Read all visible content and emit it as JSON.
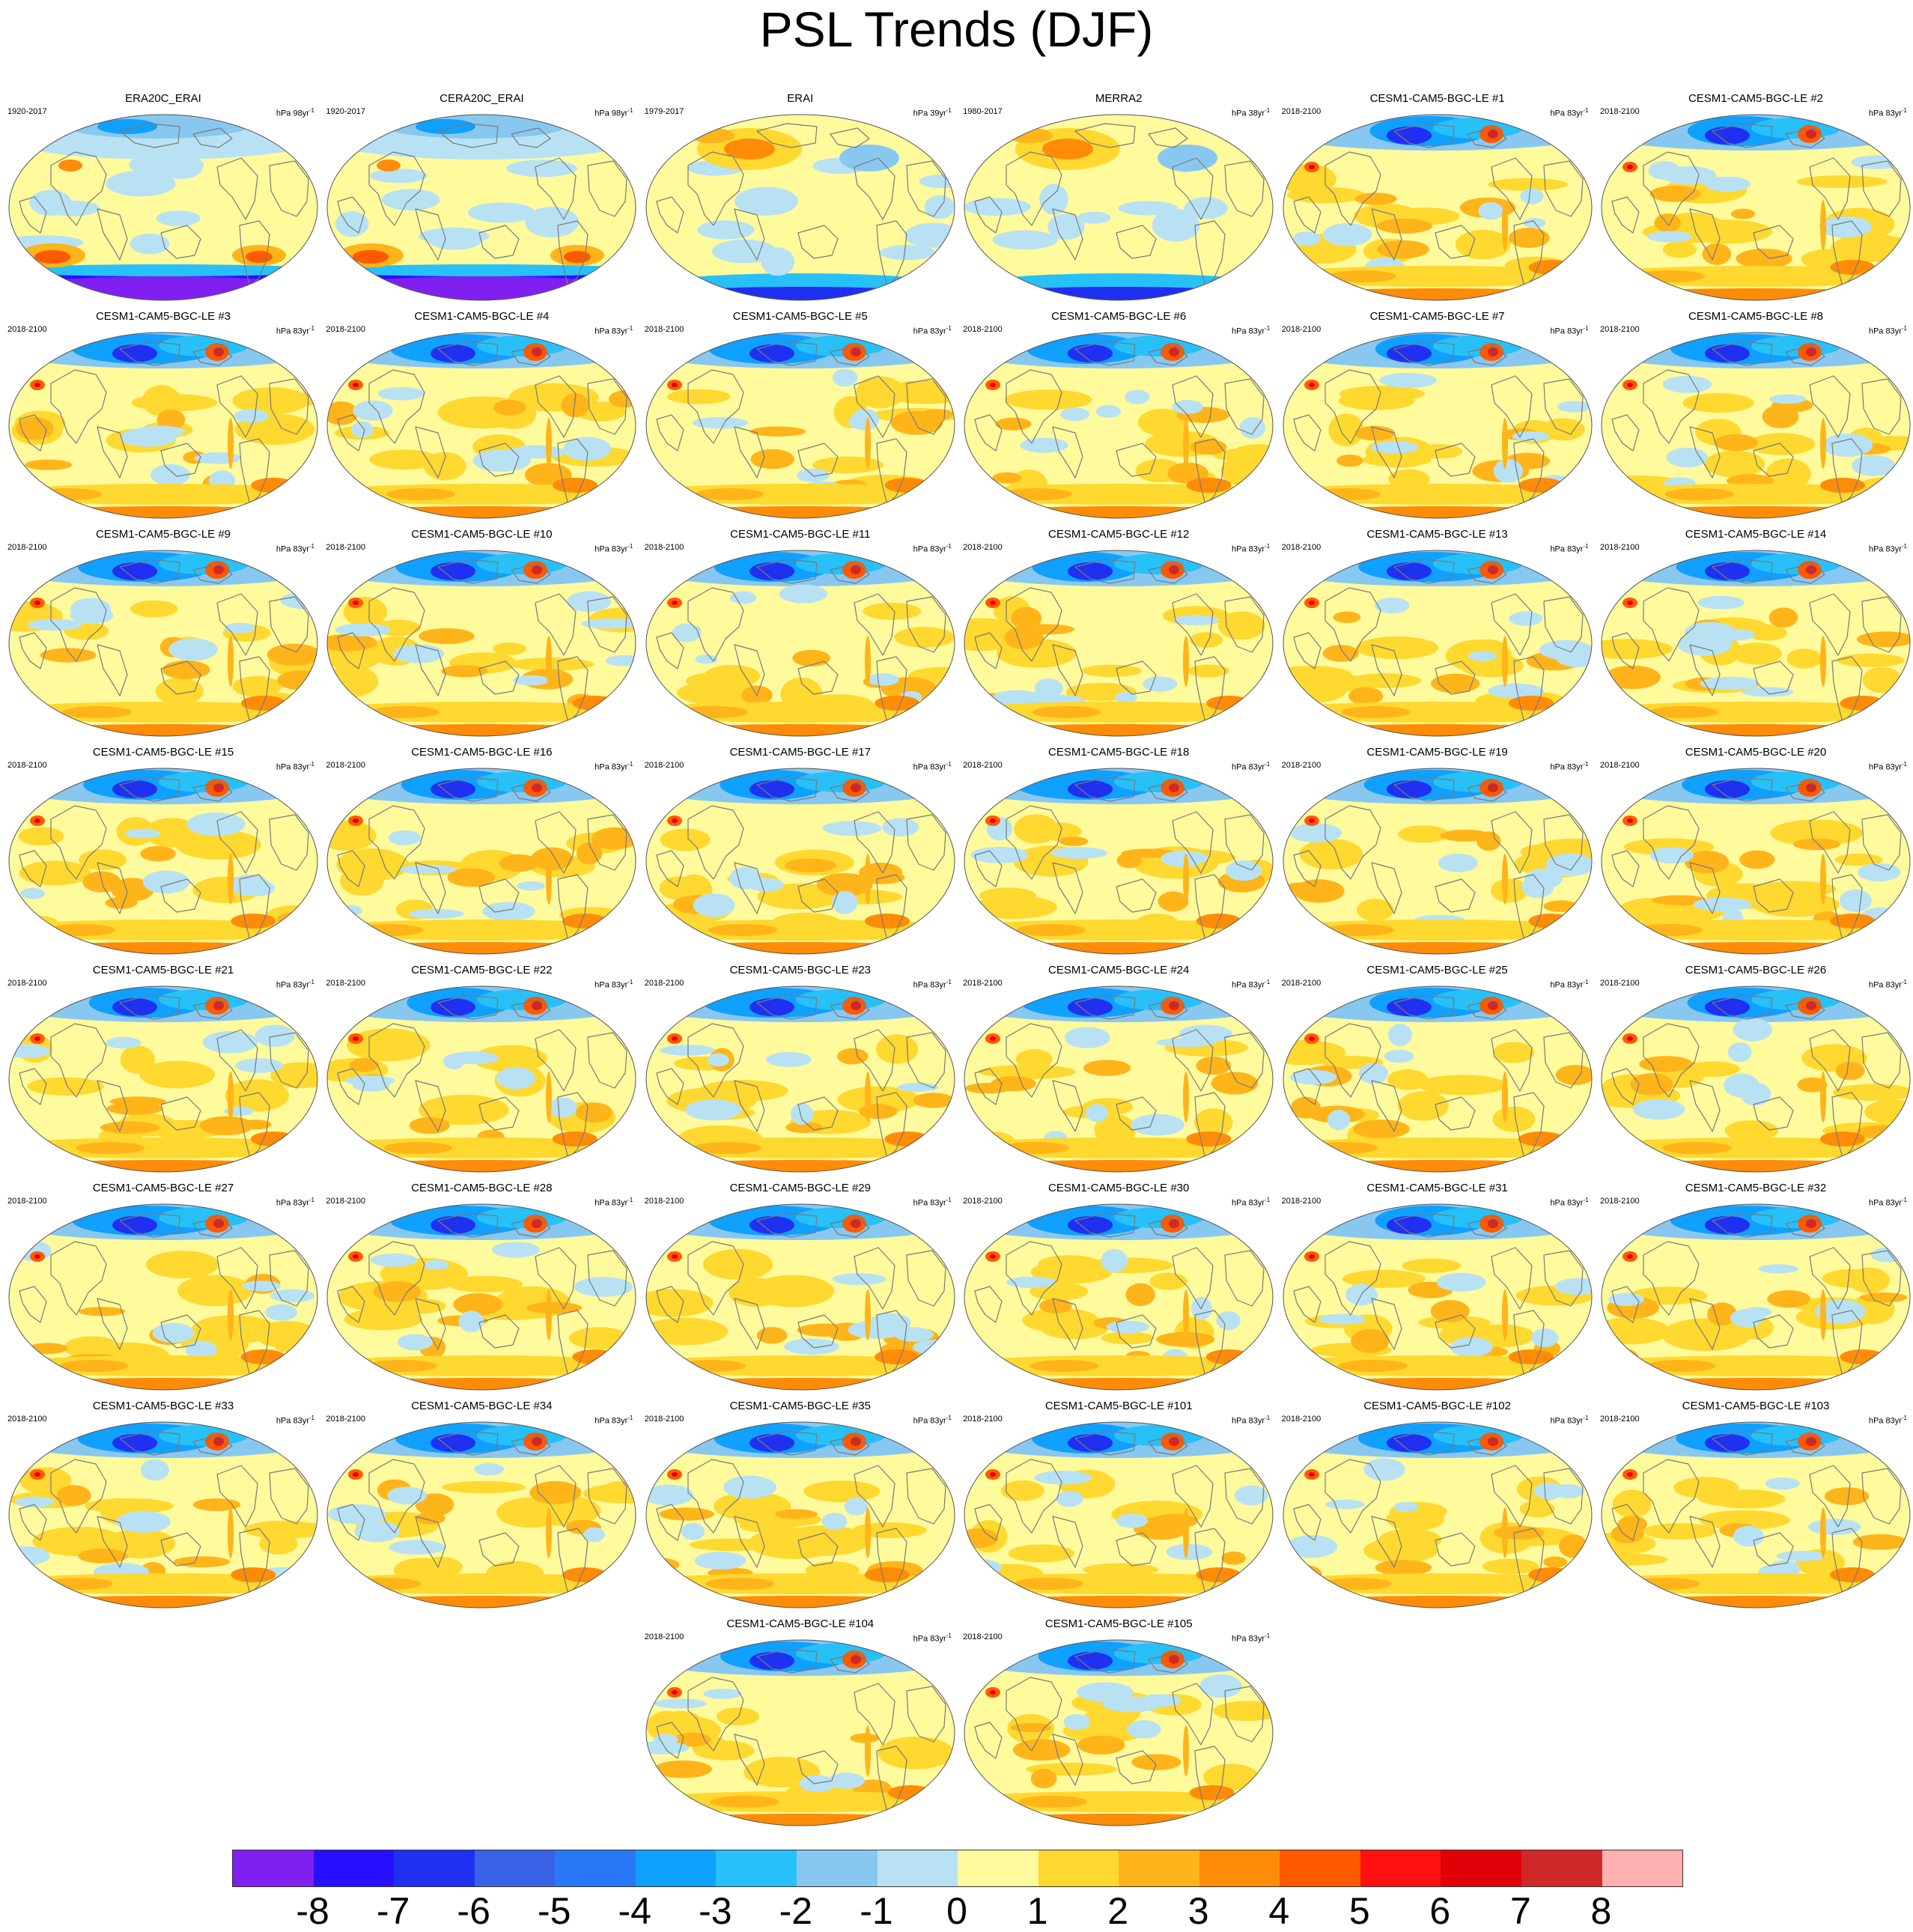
{
  "title": "PSL Trends (DJF)",
  "colorbar": {
    "colors": [
      "#8020f0",
      "#2810ff",
      "#2030f0",
      "#3a62e6",
      "#2878f8",
      "#10a0ff",
      "#28c0f8",
      "#88c8f0",
      "#b8e2f4",
      "#fffa9c",
      "#ffd830",
      "#ffb41a",
      "#ff8c08",
      "#ff5a00",
      "#ff1010",
      "#e00008",
      "#d02828",
      "#ffb0b0"
    ],
    "labels": [
      "-8",
      "-7",
      "-6",
      "-5",
      "-4",
      "-3",
      "-2",
      "-1",
      "0",
      "1",
      "2",
      "3",
      "4",
      "5",
      "6",
      "7",
      "8"
    ]
  },
  "panels": [
    {
      "name": "ERA20C_ERAI",
      "years": "1920-2017",
      "units": "hPa 98yr",
      "style": "reanalysis"
    },
    {
      "name": "CERA20C_ERAI",
      "years": "1920-2017",
      "units": "hPa 98yr",
      "style": "reanalysis"
    },
    {
      "name": "ERAI",
      "years": "1979-2017",
      "units": "hPa 39yr",
      "style": "erai"
    },
    {
      "name": "MERRA2",
      "years": "1980-2017",
      "units": "hPa 38yr",
      "style": "erai"
    },
    {
      "name": "CESM1-CAM5-BGC-LE #1",
      "years": "2018-2100",
      "units": "hPa 83yr",
      "style": "model"
    },
    {
      "name": "CESM1-CAM5-BGC-LE #2",
      "years": "2018-2100",
      "units": "hPa 83yr",
      "style": "model"
    },
    {
      "name": "CESM1-CAM5-BGC-LE #3",
      "years": "2018-2100",
      "units": "hPa 83yr",
      "style": "model"
    },
    {
      "name": "CESM1-CAM5-BGC-LE #4",
      "years": "2018-2100",
      "units": "hPa 83yr",
      "style": "model"
    },
    {
      "name": "CESM1-CAM5-BGC-LE #5",
      "years": "2018-2100",
      "units": "hPa 83yr",
      "style": "model"
    },
    {
      "name": "CESM1-CAM5-BGC-LE #6",
      "years": "2018-2100",
      "units": "hPa 83yr",
      "style": "model"
    },
    {
      "name": "CESM1-CAM5-BGC-LE #7",
      "years": "2018-2100",
      "units": "hPa 83yr",
      "style": "model"
    },
    {
      "name": "CESM1-CAM5-BGC-LE #8",
      "years": "2018-2100",
      "units": "hPa 83yr",
      "style": "model"
    },
    {
      "name": "CESM1-CAM5-BGC-LE #9",
      "years": "2018-2100",
      "units": "hPa 83yr",
      "style": "model"
    },
    {
      "name": "CESM1-CAM5-BGC-LE #10",
      "years": "2018-2100",
      "units": "hPa 83yr",
      "style": "model"
    },
    {
      "name": "CESM1-CAM5-BGC-LE #11",
      "years": "2018-2100",
      "units": "hPa 83yr",
      "style": "model"
    },
    {
      "name": "CESM1-CAM5-BGC-LE #12",
      "years": "2018-2100",
      "units": "hPa 83yr",
      "style": "model"
    },
    {
      "name": "CESM1-CAM5-BGC-LE #13",
      "years": "2018-2100",
      "units": "hPa 83yr",
      "style": "model"
    },
    {
      "name": "CESM1-CAM5-BGC-LE #14",
      "years": "2018-2100",
      "units": "hPa 83yr",
      "style": "model"
    },
    {
      "name": "CESM1-CAM5-BGC-LE #15",
      "years": "2018-2100",
      "units": "hPa 83yr",
      "style": "model"
    },
    {
      "name": "CESM1-CAM5-BGC-LE #16",
      "years": "2018-2100",
      "units": "hPa 83yr",
      "style": "model"
    },
    {
      "name": "CESM1-CAM5-BGC-LE #17",
      "years": "2018-2100",
      "units": "hPa 83yr",
      "style": "model"
    },
    {
      "name": "CESM1-CAM5-BGC-LE #18",
      "years": "2018-2100",
      "units": "hPa 83yr",
      "style": "model"
    },
    {
      "name": "CESM1-CAM5-BGC-LE #19",
      "years": "2018-2100",
      "units": "hPa 83yr",
      "style": "model"
    },
    {
      "name": "CESM1-CAM5-BGC-LE #20",
      "years": "2018-2100",
      "units": "hPa 83yr",
      "style": "model"
    },
    {
      "name": "CESM1-CAM5-BGC-LE #21",
      "years": "2018-2100",
      "units": "hPa 83yr",
      "style": "model"
    },
    {
      "name": "CESM1-CAM5-BGC-LE #22",
      "years": "2018-2100",
      "units": "hPa 83yr",
      "style": "model"
    },
    {
      "name": "CESM1-CAM5-BGC-LE #23",
      "years": "2018-2100",
      "units": "hPa 83yr",
      "style": "model"
    },
    {
      "name": "CESM1-CAM5-BGC-LE #24",
      "years": "2018-2100",
      "units": "hPa 83yr",
      "style": "model"
    },
    {
      "name": "CESM1-CAM5-BGC-LE #25",
      "years": "2018-2100",
      "units": "hPa 83yr",
      "style": "model"
    },
    {
      "name": "CESM1-CAM5-BGC-LE #26",
      "years": "2018-2100",
      "units": "hPa 83yr",
      "style": "model"
    },
    {
      "name": "CESM1-CAM5-BGC-LE #27",
      "years": "2018-2100",
      "units": "hPa 83yr",
      "style": "model"
    },
    {
      "name": "CESM1-CAM5-BGC-LE #28",
      "years": "2018-2100",
      "units": "hPa 83yr",
      "style": "model"
    },
    {
      "name": "CESM1-CAM5-BGC-LE #29",
      "years": "2018-2100",
      "units": "hPa 83yr",
      "style": "model"
    },
    {
      "name": "CESM1-CAM5-BGC-LE #30",
      "years": "2018-2100",
      "units": "hPa 83yr",
      "style": "model"
    },
    {
      "name": "CESM1-CAM5-BGC-LE #31",
      "years": "2018-2100",
      "units": "hPa 83yr",
      "style": "model"
    },
    {
      "name": "CESM1-CAM5-BGC-LE #32",
      "years": "2018-2100",
      "units": "hPa 83yr",
      "style": "model"
    },
    {
      "name": "CESM1-CAM5-BGC-LE #33",
      "years": "2018-2100",
      "units": "hPa 83yr",
      "style": "model"
    },
    {
      "name": "CESM1-CAM5-BGC-LE #34",
      "years": "2018-2100",
      "units": "hPa 83yr",
      "style": "model"
    },
    {
      "name": "CESM1-CAM5-BGC-LE #35",
      "years": "2018-2100",
      "units": "hPa 83yr",
      "style": "model"
    },
    {
      "name": "CESM1-CAM5-BGC-LE #101",
      "years": "2018-2100",
      "units": "hPa 83yr",
      "style": "model"
    },
    {
      "name": "CESM1-CAM5-BGC-LE #102",
      "years": "2018-2100",
      "units": "hPa 83yr",
      "style": "model"
    },
    {
      "name": "CESM1-CAM5-BGC-LE #103",
      "years": "2018-2100",
      "units": "hPa 83yr",
      "style": "model"
    },
    {
      "name": "CESM1-CAM5-BGC-LE #104",
      "years": "2018-2100",
      "units": "hPa 83yr",
      "style": "model"
    },
    {
      "name": "CESM1-CAM5-BGC-LE #105",
      "years": "2018-2100",
      "units": "hPa 83yr",
      "style": "model"
    }
  ]
}
